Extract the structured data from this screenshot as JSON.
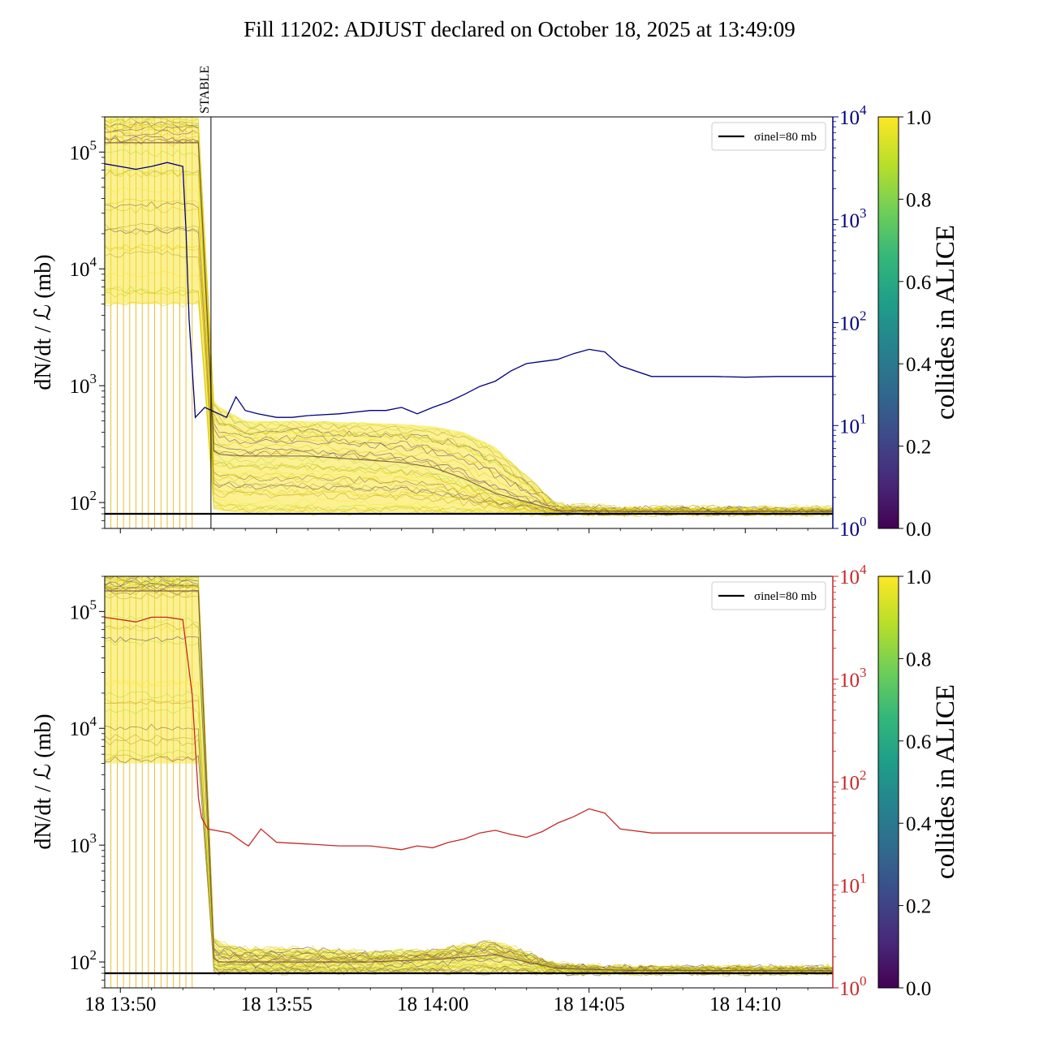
{
  "chart_data": {
    "title": "Fill 11202: ADJUST declared on October 18, 2025 at 13:49:09",
    "x_tick_labels": [
      "18 13:50",
      "18 13:55",
      "18 14:00",
      "18 14:05",
      "18 14:10"
    ],
    "x_range_minutes": [
      -0.5,
      22.8
    ],
    "left_ylabel": "dN/dt / ℒ (mb)",
    "left_ylim": [
      60,
      200000
    ],
    "left_scale": "log",
    "right_ylim": [
      1,
      10000
    ],
    "right_scale": "log",
    "grid": false,
    "legend_position": "top-right",
    "colorbar_label": "collides in ALICE",
    "colorbar_ticks": [
      "0.0",
      "0.2",
      "0.4",
      "0.6",
      "0.8",
      "1.0"
    ],
    "colorbar_colors": [
      "#440154",
      "#482878",
      "#3e4989",
      "#31688e",
      "#26828e",
      "#1f9e89",
      "#35b779",
      "#6ece58",
      "#b5de2b",
      "#fde725"
    ],
    "panels": [
      {
        "type": "line",
        "legend_label": "σinel=80 mb",
        "reference_line": 80,
        "vertical_marker": {
          "label": "STABLE",
          "x": 2.9
        },
        "right_axis_color": "#000080",
        "right_series": {
          "x": [
            -0.5,
            0.5,
            1,
            1.5,
            2,
            2.1,
            2.2,
            2.4,
            2.7,
            3.4,
            3.7,
            4,
            4.4,
            5,
            5.5,
            6,
            7,
            8,
            8.5,
            9,
            9.5,
            10,
            10.5,
            11,
            11.5,
            12,
            12.5,
            13,
            13.5,
            14,
            14.5,
            15,
            15.5,
            16,
            17,
            18,
            19,
            20,
            21,
            22,
            22.8
          ],
          "y": [
            3500,
            3100,
            3300,
            3600,
            3300,
            800,
            110,
            12,
            15,
            12,
            19,
            14,
            13,
            12,
            12,
            12.5,
            13,
            14,
            14,
            15,
            13,
            15,
            17,
            20,
            24,
            27,
            34,
            40,
            42,
            44,
            50,
            55,
            52,
            38,
            30,
            30,
            30,
            29.5,
            30,
            30,
            30
          ]
        },
        "bunch_envelope": {
          "x": [
            -0.5,
            2.5,
            3,
            4,
            6,
            8,
            9,
            10,
            11,
            12,
            14,
            16,
            22.8
          ],
          "upper": [
            200000,
            200000,
            700,
            500,
            500,
            480,
            470,
            450,
            400,
            300,
            95,
            90,
            90
          ],
          "core": [
            120000,
            120000,
            260,
            250,
            250,
            230,
            220,
            200,
            160,
            120,
            85,
            84,
            84
          ],
          "lower": [
            5000,
            5000,
            85,
            82,
            82,
            82,
            82,
            82,
            81,
            81,
            81,
            81,
            81
          ]
        }
      },
      {
        "type": "line",
        "legend_label": "σinel=80 mb",
        "reference_line": 80,
        "right_axis_color": "#c62828",
        "right_series": {
          "x": [
            -0.5,
            0.5,
            1,
            1.5,
            2,
            2.3,
            2.5,
            2.6,
            2.8,
            3.5,
            4,
            4.1,
            4.5,
            5,
            6,
            7,
            8,
            8.5,
            9,
            9.5,
            10,
            10.5,
            11,
            11.5,
            12,
            12.5,
            13,
            13.5,
            14,
            14.5,
            15,
            15.5,
            16,
            17,
            18,
            19,
            20,
            21,
            22,
            22.8
          ],
          "y": [
            4000,
            3600,
            4000,
            4000,
            3800,
            700,
            70,
            45,
            35,
            32,
            25,
            24,
            35,
            26,
            25,
            24,
            24,
            23,
            22,
            24,
            23,
            26,
            28,
            32,
            34,
            31,
            29,
            33,
            40,
            46,
            55,
            50,
            35,
            32,
            32,
            32,
            32,
            32,
            32,
            32
          ]
        },
        "bunch_envelope": {
          "x": [
            -0.5,
            2.5,
            3,
            4,
            6,
            8,
            10,
            11,
            12,
            13,
            14,
            16,
            22.8
          ],
          "upper": [
            200000,
            200000,
            150,
            130,
            130,
            120,
            125,
            140,
            150,
            120,
            95,
            90,
            90
          ],
          "core": [
            150000,
            150000,
            100,
            100,
            100,
            100,
            105,
            110,
            115,
            100,
            88,
            85,
            84
          ],
          "lower": [
            5000,
            5000,
            82,
            82,
            82,
            82,
            82,
            82,
            82,
            82,
            81,
            81,
            81
          ]
        }
      }
    ]
  }
}
